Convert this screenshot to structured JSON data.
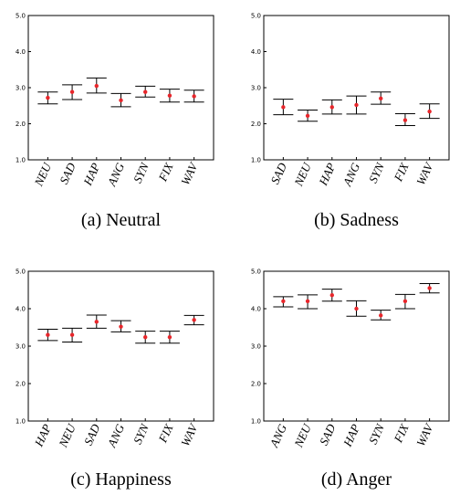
{
  "chart_data": [
    {
      "type": "errorbar",
      "caption": "(a) Neutral",
      "ylim": [
        1.0,
        5.0
      ],
      "yticks": [
        "1.0",
        "2.0",
        "3.0",
        "4.0",
        "5.0"
      ],
      "categories": [
        "NEU",
        "SAD",
        "HAP",
        "ANG",
        "SYN",
        "FIX",
        "WAV"
      ],
      "values": [
        2.72,
        2.88,
        3.05,
        2.65,
        2.88,
        2.78,
        2.76
      ],
      "lower": [
        2.55,
        2.67,
        2.85,
        2.47,
        2.74,
        2.6,
        2.6
      ],
      "upper": [
        2.88,
        3.08,
        3.27,
        2.84,
        3.04,
        2.96,
        2.93
      ]
    },
    {
      "type": "errorbar",
      "caption": "(b) Sadness",
      "ylim": [
        1.0,
        5.0
      ],
      "yticks": [
        "1.0",
        "2.0",
        "3.0",
        "4.0",
        "5.0"
      ],
      "categories": [
        "SAD",
        "NEU",
        "HAP",
        "ANG",
        "SYN",
        "FIX",
        "WAV"
      ],
      "values": [
        2.46,
        2.22,
        2.46,
        2.52,
        2.7,
        2.1,
        2.34
      ],
      "lower": [
        2.25,
        2.07,
        2.27,
        2.27,
        2.54,
        1.95,
        2.15
      ],
      "upper": [
        2.68,
        2.38,
        2.66,
        2.77,
        2.88,
        2.28,
        2.55
      ]
    },
    {
      "type": "errorbar",
      "caption": "(c) Happiness",
      "ylim": [
        1.0,
        5.0
      ],
      "yticks": [
        "1.0",
        "2.0",
        "3.0",
        "4.0",
        "5.0"
      ],
      "categories": [
        "HAP",
        "NEU",
        "SAD",
        "ANG",
        "SYN",
        "FIX",
        "WAV"
      ],
      "values": [
        3.3,
        3.3,
        3.65,
        3.52,
        3.24,
        3.24,
        3.7
      ],
      "lower": [
        3.15,
        3.11,
        3.48,
        3.38,
        3.08,
        3.08,
        3.57
      ],
      "upper": [
        3.45,
        3.48,
        3.83,
        3.68,
        3.4,
        3.4,
        3.82
      ]
    },
    {
      "type": "errorbar",
      "caption": "(d) Anger",
      "ylim": [
        1.0,
        5.0
      ],
      "yticks": [
        "1.0",
        "2.0",
        "3.0",
        "4.0",
        "5.0"
      ],
      "categories": [
        "ANG",
        "NEU",
        "SAD",
        "HAP",
        "SYN",
        "FIX",
        "WAV"
      ],
      "values": [
        4.2,
        4.2,
        4.36,
        4.0,
        3.82,
        4.2,
        4.55
      ],
      "lower": [
        4.05,
        4.0,
        4.2,
        3.8,
        3.7,
        4.0,
        4.42
      ],
      "upper": [
        4.32,
        4.37,
        4.52,
        4.21,
        3.96,
        4.38,
        4.67
      ]
    }
  ],
  "colors": {
    "marker": "#e8262b",
    "line": "#000000"
  }
}
